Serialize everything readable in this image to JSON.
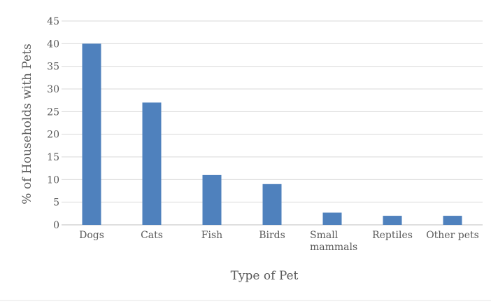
{
  "chart_data": {
    "type": "bar",
    "title": "",
    "xlabel": "Type of Pet",
    "ylabel": "% of Households with Pets",
    "categories": [
      "Dogs",
      "Cats",
      "Fish",
      "Birds",
      "Small mammals",
      "Reptiles",
      "Other pets"
    ],
    "category_lines": [
      [
        "Dogs"
      ],
      [
        "Cats"
      ],
      [
        "Fish"
      ],
      [
        "Birds"
      ],
      [
        "Small",
        "mammals"
      ],
      [
        "Reptiles"
      ],
      [
        "Other pets"
      ]
    ],
    "values": [
      40,
      27,
      11,
      9,
      2.7,
      2,
      2
    ],
    "ylim": [
      0,
      45
    ],
    "yticks": [
      0,
      5,
      10,
      15,
      20,
      25,
      30,
      35,
      40,
      45
    ],
    "grid": true,
    "legend": "none",
    "colors": {
      "bar": "#4f81bd",
      "grid": "#d9d9d9",
      "axis": "#bfbfbf",
      "text": "#595959"
    }
  }
}
